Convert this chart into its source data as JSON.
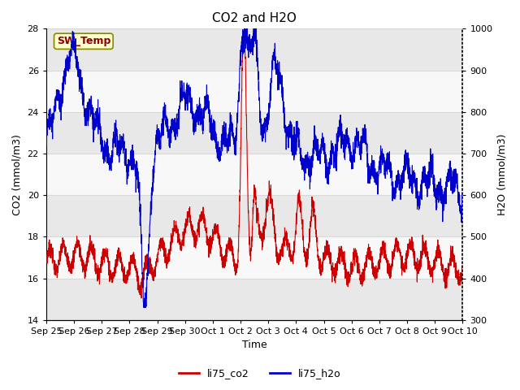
{
  "title": "CO2 and H2O",
  "xlabel": "Time",
  "ylabel_left": "CO2 (mmol/m3)",
  "ylabel_right": "H2O (mmol/m3)",
  "ylim_left": [
    14,
    28
  ],
  "ylim_right": [
    300,
    1000
  ],
  "yticks_left": [
    14,
    16,
    18,
    20,
    22,
    24,
    26,
    28
  ],
  "yticks_right": [
    300,
    400,
    500,
    600,
    700,
    800,
    900,
    1000
  ],
  "color_co2": "#cc0000",
  "color_h2o": "#0000cc",
  "legend_label_co2": "li75_co2",
  "legend_label_h2o": "li75_h2o",
  "annotation_text": "SW_Temp",
  "annotation_bg": "#ffffcc",
  "annotation_border": "#888800",
  "annotation_text_color": "#880000",
  "background_color": "#ffffff",
  "plot_bg_color": "#f4f4f4",
  "band_light": "#e8e8e8",
  "band_white": "#f8f8f8",
  "grid_line_color": "#d8d8d8",
  "title_fontsize": 11,
  "axis_label_fontsize": 9,
  "tick_fontsize": 8,
  "legend_fontsize": 9,
  "n_points": 3000
}
